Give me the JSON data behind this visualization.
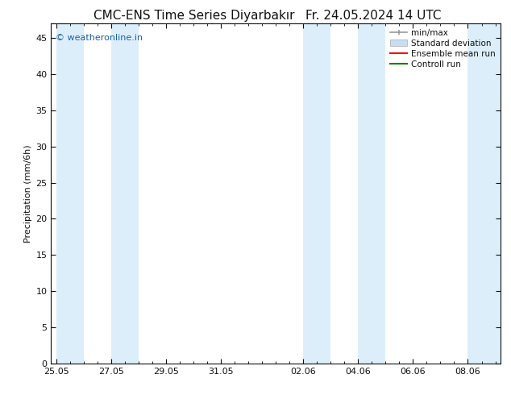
{
  "title": "CMC-ENS Time Series Diyarbakır",
  "title_right": "Fr. 24.05.2024 14 UTC",
  "ylabel": "Precipitation (mm/6h)",
  "watermark": "© weatheronline.in",
  "background_color": "#ffffff",
  "plot_bg_color": "#ffffff",
  "ylim": [
    0,
    47
  ],
  "yticks": [
    0,
    5,
    10,
    15,
    20,
    25,
    30,
    35,
    40,
    45
  ],
  "xtick_labels": [
    "25.05",
    "27.05",
    "29.05",
    "31.05",
    "02.06",
    "04.06",
    "06.06",
    "08.06"
  ],
  "xtick_positions": [
    0,
    2,
    4,
    6,
    9,
    11,
    13,
    15
  ],
  "xlim": [
    -0.2,
    16.2
  ],
  "shaded_bands": [
    [
      0.0,
      1.0
    ],
    [
      2.0,
      3.0
    ],
    [
      9.0,
      10.0
    ],
    [
      11.0,
      12.0
    ],
    [
      15.0,
      16.2
    ]
  ],
  "shade_color": "#dceef9",
  "legend_labels": [
    "min/max",
    "Standard deviation",
    "Ensemble mean run",
    "Controll run"
  ],
  "minmax_line_color": "#999999",
  "std_fill_color": "#c8ddf0",
  "ensemble_mean_color": "#ff0000",
  "control_run_color": "#008000",
  "font_color": "#111111",
  "watermark_color": "#1a5fa8",
  "title_fontsize": 11,
  "ylabel_fontsize": 8,
  "tick_fontsize": 8,
  "legend_fontsize": 7.5
}
